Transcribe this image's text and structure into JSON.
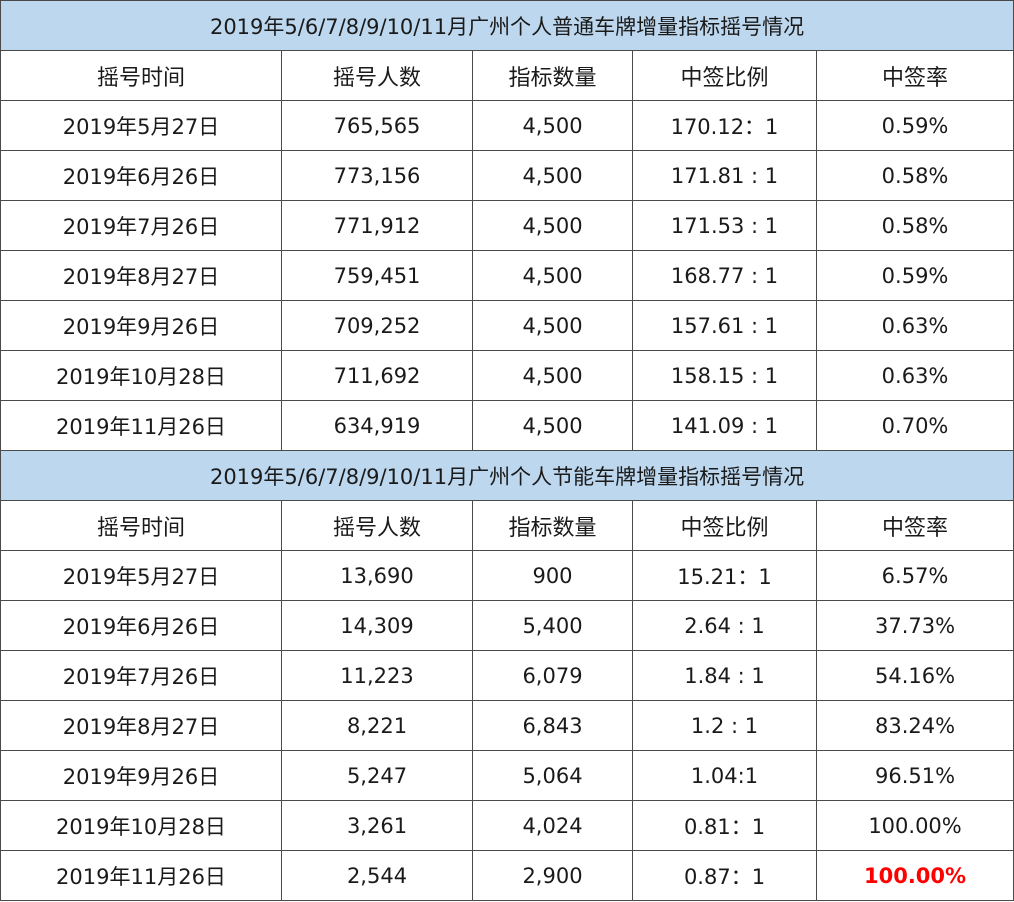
{
  "headers": [
    "摇号时间",
    "摇号人数",
    "指标数量",
    "中签比例",
    "中签率"
  ],
  "sections": [
    {
      "title": "2019年5/6/7/8/9/10/11月广州个人普通车牌增量指标摇号情况",
      "rows": [
        [
          "2019年5月27日",
          "765,565",
          "4,500",
          "170.12：1",
          "0.59%"
        ],
        [
          "2019年6月26日",
          "773,156",
          "4,500",
          "171.81 : 1",
          "0.58%"
        ],
        [
          "2019年7月26日",
          "771,912",
          "4,500",
          "171.53 : 1",
          "0.58%"
        ],
        [
          "2019年8月27日",
          "759,451",
          "4,500",
          "168.77 : 1",
          "0.59%"
        ],
        [
          "2019年9月26日",
          "709,252",
          "4,500",
          "157.61 : 1",
          "0.63%"
        ],
        [
          "2019年10月28日",
          "711,692",
          "4,500",
          "158.15 : 1",
          "0.63%"
        ],
        [
          "2019年11月26日",
          "634,919",
          "4,500",
          "141.09 : 1",
          "0.70%"
        ]
      ]
    },
    {
      "title": "2019年5/6/7/8/9/10/11月广州个人节能车牌增量指标摇号情况",
      "rows": [
        [
          "2019年5月27日",
          "13,690",
          "900",
          "15.21：1",
          "6.57%"
        ],
        [
          "2019年6月26日",
          "14,309",
          "5,400",
          "2.64 : 1",
          "37.73%"
        ],
        [
          "2019年7月26日",
          "11,223",
          "6,079",
          "1.84 : 1",
          "54.16%"
        ],
        [
          "2019年8月27日",
          "8,221",
          "6,843",
          "1.2 : 1",
          "83.24%"
        ],
        [
          "2019年9月26日",
          "5,247",
          "5,064",
          "1.04:1",
          "96.51%"
        ],
        [
          "2019年10月28日",
          "3,261",
          "4,024",
          "0.81：1",
          "100.00%"
        ],
        [
          "2019年11月26日",
          "2,544",
          "2,900",
          "0.87：1",
          "100.00%"
        ]
      ]
    }
  ],
  "colors": {
    "title_background": "#bdd7ee",
    "border": "#4a4a4a",
    "highlight_text": "#ff0000"
  }
}
